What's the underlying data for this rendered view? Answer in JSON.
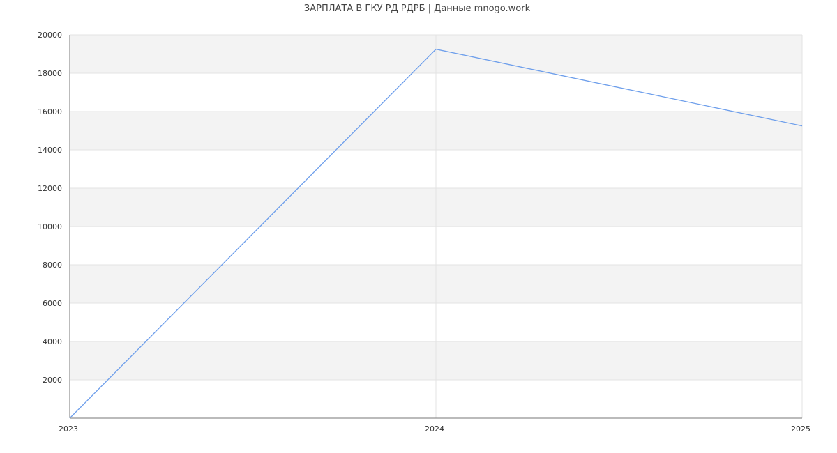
{
  "chart_data": {
    "type": "line",
    "title": "ЗАРПЛАТА В ГКУ РД РДРБ | Данные mnogo.work",
    "xlabel": "",
    "ylabel": "",
    "x": [
      2023,
      2024,
      2025
    ],
    "series": [
      {
        "values": [
          0,
          19250,
          15250
        ]
      }
    ],
    "xlim": [
      2023,
      2025
    ],
    "ylim": [
      0,
      20000
    ],
    "y_ticks": [
      2000,
      4000,
      6000,
      8000,
      10000,
      12000,
      14000,
      16000,
      18000,
      20000
    ],
    "x_ticks": [
      "2023",
      "2024",
      "2025"
    ],
    "grid": true,
    "legend": "none",
    "colors": {
      "line": "#6d9eeb",
      "band": "#f3f3f3",
      "grid": "#e3e3e3",
      "axis": "#777777"
    }
  }
}
